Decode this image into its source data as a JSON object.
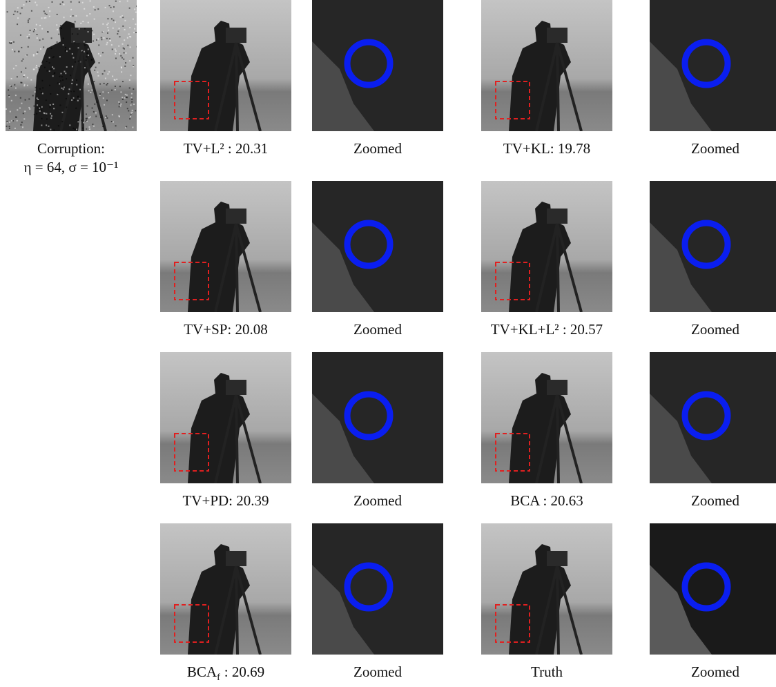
{
  "corruption": {
    "caption": [
      "Corruption:",
      "η = 64, σ = 10⁻¹"
    ]
  },
  "results": [
    {
      "caption": "TV+L² : 20.31",
      "zoom_caption": "Zoomed"
    },
    {
      "caption": "TV+KL: 19.78",
      "zoom_caption": "Zoomed"
    },
    {
      "caption": "TV+SP: 20.08",
      "zoom_caption": "Zoomed"
    },
    {
      "caption": "TV+KL+L² : 20.57",
      "zoom_caption": "Zoomed"
    },
    {
      "caption": "TV+PD: 20.39",
      "zoom_caption": "Zoomed"
    },
    {
      "caption": "BCA : 20.63",
      "zoom_caption": "Zoomed"
    },
    {
      "caption": {
        "name": "BCA",
        "subscript": "f",
        "score": ": 20.69"
      },
      "zoom_caption": "Zoomed"
    },
    {
      "caption": "Truth",
      "zoom_caption": "Zoomed"
    }
  ]
}
